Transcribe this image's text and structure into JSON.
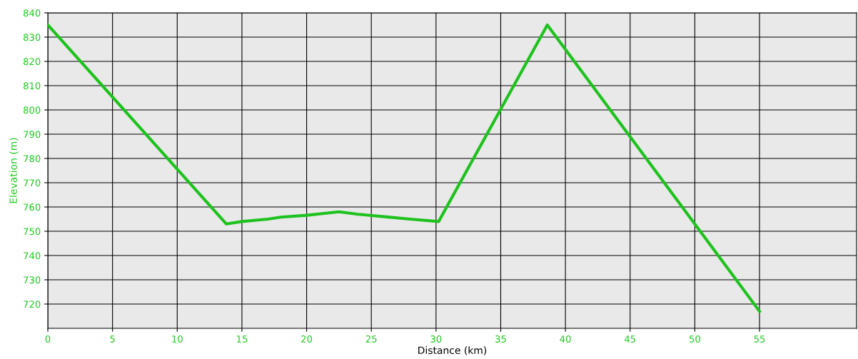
{
  "chart_data": {
    "type": "line",
    "xlabel": "Distance (km)",
    "ylabel": "Elevation (m)",
    "x": [
      0,
      13.8,
      15,
      17,
      18,
      20,
      22.5,
      24,
      26,
      28,
      30.2,
      38.6,
      55
    ],
    "series": [
      {
        "color": "#1ec21e",
        "values": [
          835,
          753,
          754,
          755,
          755.8,
          756.6,
          758,
          757,
          756,
          755,
          754,
          835,
          717
        ]
      }
    ],
    "xlim": [
      0,
      62.5
    ],
    "ylim": [
      710,
      840
    ],
    "xticks": [
      0,
      5,
      10,
      15,
      20,
      25,
      30,
      35,
      40,
      45,
      50,
      55
    ],
    "yticks": [
      720,
      730,
      740,
      750,
      760,
      770,
      780,
      790,
      800,
      810,
      820,
      830,
      840
    ],
    "grid": true,
    "marker": "none",
    "line_style": "solid"
  }
}
